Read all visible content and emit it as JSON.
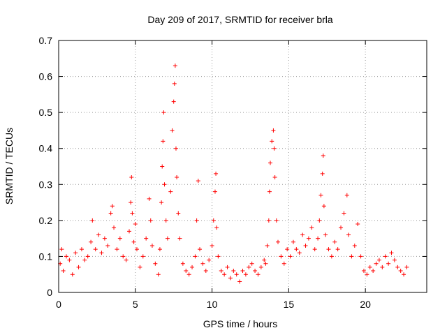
{
  "chart_data": {
    "type": "scatter",
    "title": "Day 209 of 2017, SRMTID for receiver brla",
    "xlabel": "GPS time / hours",
    "ylabel": "SRMTID / TECUs",
    "xlim": [
      0,
      24
    ],
    "ylim": [
      0,
      0.7
    ],
    "xticks": [
      0,
      5,
      10,
      15,
      20
    ],
    "yticks": [
      0,
      0.1,
      0.2,
      0.3,
      0.4,
      0.5,
      0.6,
      0.7
    ],
    "grid": true,
    "marker": "+",
    "series_color": "#ff0000",
    "series": [
      {
        "name": "SRMTID",
        "points": [
          [
            0.1,
            0.08
          ],
          [
            0.2,
            0.12
          ],
          [
            0.3,
            0.06
          ],
          [
            0.5,
            0.1
          ],
          [
            0.7,
            0.09
          ],
          [
            0.9,
            0.05
          ],
          [
            1.1,
            0.11
          ],
          [
            1.3,
            0.07
          ],
          [
            1.5,
            0.12
          ],
          [
            1.7,
            0.09
          ],
          [
            1.9,
            0.1
          ],
          [
            2.1,
            0.14
          ],
          [
            2.2,
            0.2
          ],
          [
            2.4,
            0.12
          ],
          [
            2.6,
            0.16
          ],
          [
            2.8,
            0.11
          ],
          [
            3.0,
            0.15
          ],
          [
            3.2,
            0.13
          ],
          [
            3.4,
            0.22
          ],
          [
            3.5,
            0.24
          ],
          [
            3.6,
            0.18
          ],
          [
            3.8,
            0.12
          ],
          [
            4.0,
            0.15
          ],
          [
            4.2,
            0.1
          ],
          [
            4.4,
            0.09
          ],
          [
            4.6,
            0.17
          ],
          [
            4.7,
            0.25
          ],
          [
            4.75,
            0.32
          ],
          [
            4.8,
            0.22
          ],
          [
            4.9,
            0.14
          ],
          [
            5.0,
            0.19
          ],
          [
            5.1,
            0.12
          ],
          [
            5.3,
            0.07
          ],
          [
            5.5,
            0.1
          ],
          [
            5.7,
            0.15
          ],
          [
            5.9,
            0.26
          ],
          [
            6.0,
            0.2
          ],
          [
            6.1,
            0.13
          ],
          [
            6.3,
            0.08
          ],
          [
            6.5,
            0.05
          ],
          [
            6.6,
            0.12
          ],
          [
            6.7,
            0.25
          ],
          [
            6.75,
            0.35
          ],
          [
            6.8,
            0.42
          ],
          [
            6.85,
            0.5
          ],
          [
            6.9,
            0.3
          ],
          [
            7.0,
            0.2
          ],
          [
            7.1,
            0.15
          ],
          [
            7.3,
            0.28
          ],
          [
            7.4,
            0.45
          ],
          [
            7.5,
            0.53
          ],
          [
            7.55,
            0.58
          ],
          [
            7.6,
            0.63
          ],
          [
            7.65,
            0.4
          ],
          [
            7.7,
            0.32
          ],
          [
            7.8,
            0.22
          ],
          [
            7.9,
            0.15
          ],
          [
            8.1,
            0.08
          ],
          [
            8.3,
            0.06
          ],
          [
            8.5,
            0.05
          ],
          [
            8.7,
            0.07
          ],
          [
            8.9,
            0.1
          ],
          [
            9.0,
            0.2
          ],
          [
            9.1,
            0.31
          ],
          [
            9.2,
            0.12
          ],
          [
            9.4,
            0.08
          ],
          [
            9.6,
            0.06
          ],
          [
            9.8,
            0.09
          ],
          [
            10.0,
            0.13
          ],
          [
            10.1,
            0.2
          ],
          [
            10.2,
            0.28
          ],
          [
            10.25,
            0.33
          ],
          [
            10.3,
            0.18
          ],
          [
            10.4,
            0.1
          ],
          [
            10.6,
            0.06
          ],
          [
            10.8,
            0.05
          ],
          [
            11.0,
            0.07
          ],
          [
            11.2,
            0.04
          ],
          [
            11.4,
            0.06
          ],
          [
            11.6,
            0.05
          ],
          [
            11.8,
            0.03
          ],
          [
            12.0,
            0.06
          ],
          [
            12.2,
            0.05
          ],
          [
            12.4,
            0.07
          ],
          [
            12.6,
            0.08
          ],
          [
            12.8,
            0.06
          ],
          [
            13.0,
            0.05
          ],
          [
            13.2,
            0.07
          ],
          [
            13.4,
            0.09
          ],
          [
            13.5,
            0.08
          ],
          [
            13.6,
            0.13
          ],
          [
            13.7,
            0.2
          ],
          [
            13.75,
            0.28
          ],
          [
            13.8,
            0.36
          ],
          [
            13.9,
            0.42
          ],
          [
            14.0,
            0.45
          ],
          [
            14.05,
            0.4
          ],
          [
            14.1,
            0.32
          ],
          [
            14.2,
            0.2
          ],
          [
            14.3,
            0.14
          ],
          [
            14.5,
            0.1
          ],
          [
            14.7,
            0.08
          ],
          [
            14.9,
            0.12
          ],
          [
            15.1,
            0.1
          ],
          [
            15.3,
            0.14
          ],
          [
            15.5,
            0.12
          ],
          [
            15.7,
            0.11
          ],
          [
            15.9,
            0.16
          ],
          [
            16.1,
            0.13
          ],
          [
            16.3,
            0.15
          ],
          [
            16.5,
            0.18
          ],
          [
            16.7,
            0.12
          ],
          [
            16.9,
            0.15
          ],
          [
            17.0,
            0.2
          ],
          [
            17.1,
            0.27
          ],
          [
            17.2,
            0.33
          ],
          [
            17.25,
            0.38
          ],
          [
            17.3,
            0.24
          ],
          [
            17.4,
            0.16
          ],
          [
            17.6,
            0.12
          ],
          [
            17.8,
            0.1
          ],
          [
            18.0,
            0.14
          ],
          [
            18.2,
            0.12
          ],
          [
            18.4,
            0.18
          ],
          [
            18.6,
            0.22
          ],
          [
            18.8,
            0.27
          ],
          [
            18.9,
            0.16
          ],
          [
            19.1,
            0.1
          ],
          [
            19.3,
            0.13
          ],
          [
            19.5,
            0.19
          ],
          [
            19.7,
            0.1
          ],
          [
            19.9,
            0.06
          ],
          [
            20.1,
            0.05
          ],
          [
            20.3,
            0.07
          ],
          [
            20.5,
            0.06
          ],
          [
            20.7,
            0.08
          ],
          [
            20.9,
            0.09
          ],
          [
            21.1,
            0.07
          ],
          [
            21.3,
            0.1
          ],
          [
            21.5,
            0.08
          ],
          [
            21.7,
            0.11
          ],
          [
            21.9,
            0.09
          ],
          [
            22.1,
            0.07
          ],
          [
            22.3,
            0.06
          ],
          [
            22.5,
            0.05
          ],
          [
            22.7,
            0.07
          ]
        ]
      }
    ]
  }
}
